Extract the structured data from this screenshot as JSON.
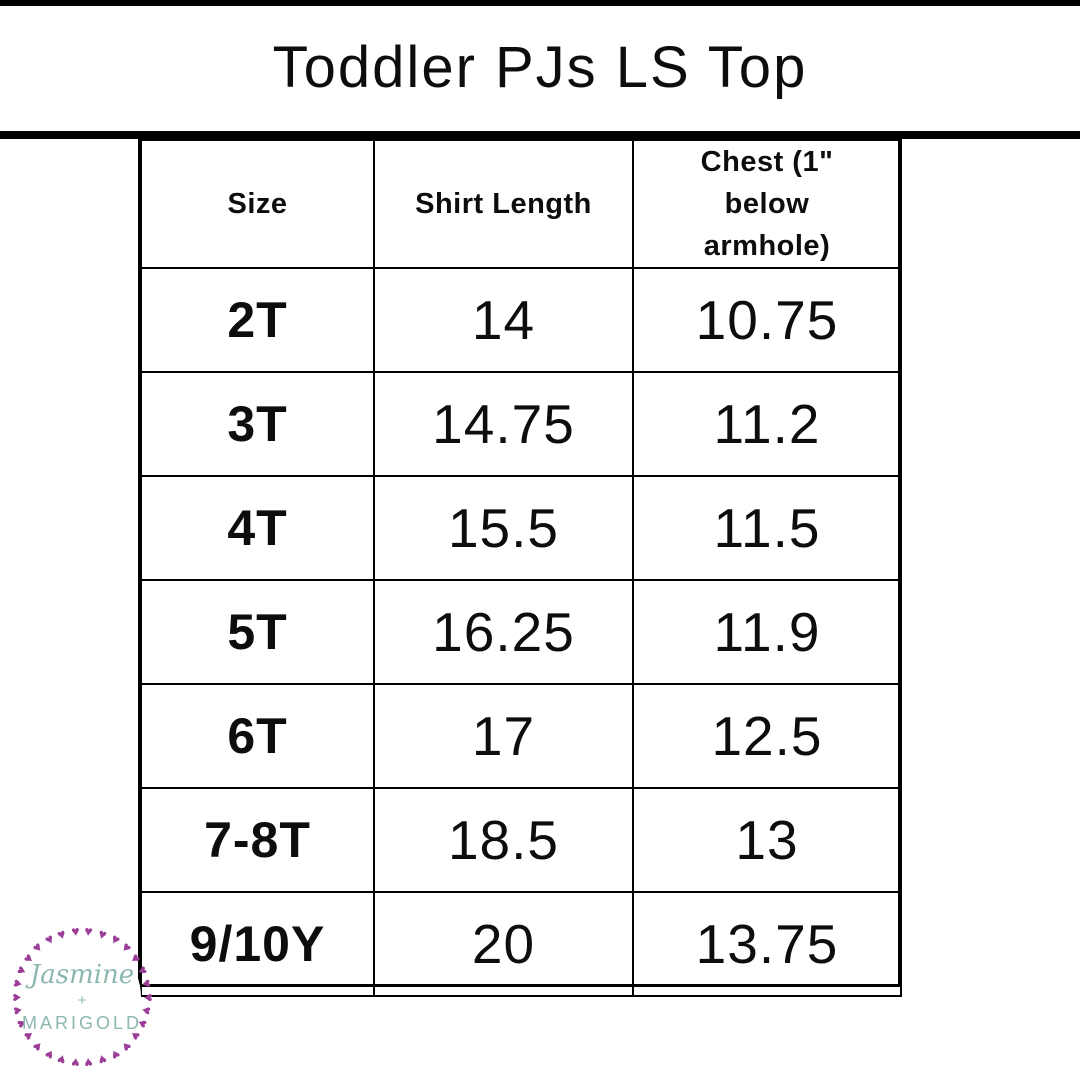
{
  "title": "Toddler PJs LS Top",
  "chart_data": {
    "type": "table",
    "title": "Toddler PJs LS Top",
    "columns": [
      "Size",
      "Shirt Length",
      "Chest (1\" below armhole)"
    ],
    "rows": [
      [
        "2T",
        "14",
        "10.75"
      ],
      [
        "3T",
        "14.75",
        "11.2"
      ],
      [
        "4T",
        "15.5",
        "11.5"
      ],
      [
        "5T",
        "16.25",
        "11.9"
      ],
      [
        "6T",
        "17",
        "12.5"
      ],
      [
        "7-8T",
        "18.5",
        "13"
      ],
      [
        "9/10Y",
        "20",
        "13.75"
      ]
    ]
  },
  "logo": {
    "line1": "Jasmine",
    "line2": "+",
    "line3": "MARIGOLD",
    "heart_count": 30,
    "heart_color": "#9c3e98",
    "text_color": "#8db7b1"
  },
  "colors": {
    "bar": "#000000",
    "text": "#0d0d0d",
    "background": "#ffffff"
  }
}
